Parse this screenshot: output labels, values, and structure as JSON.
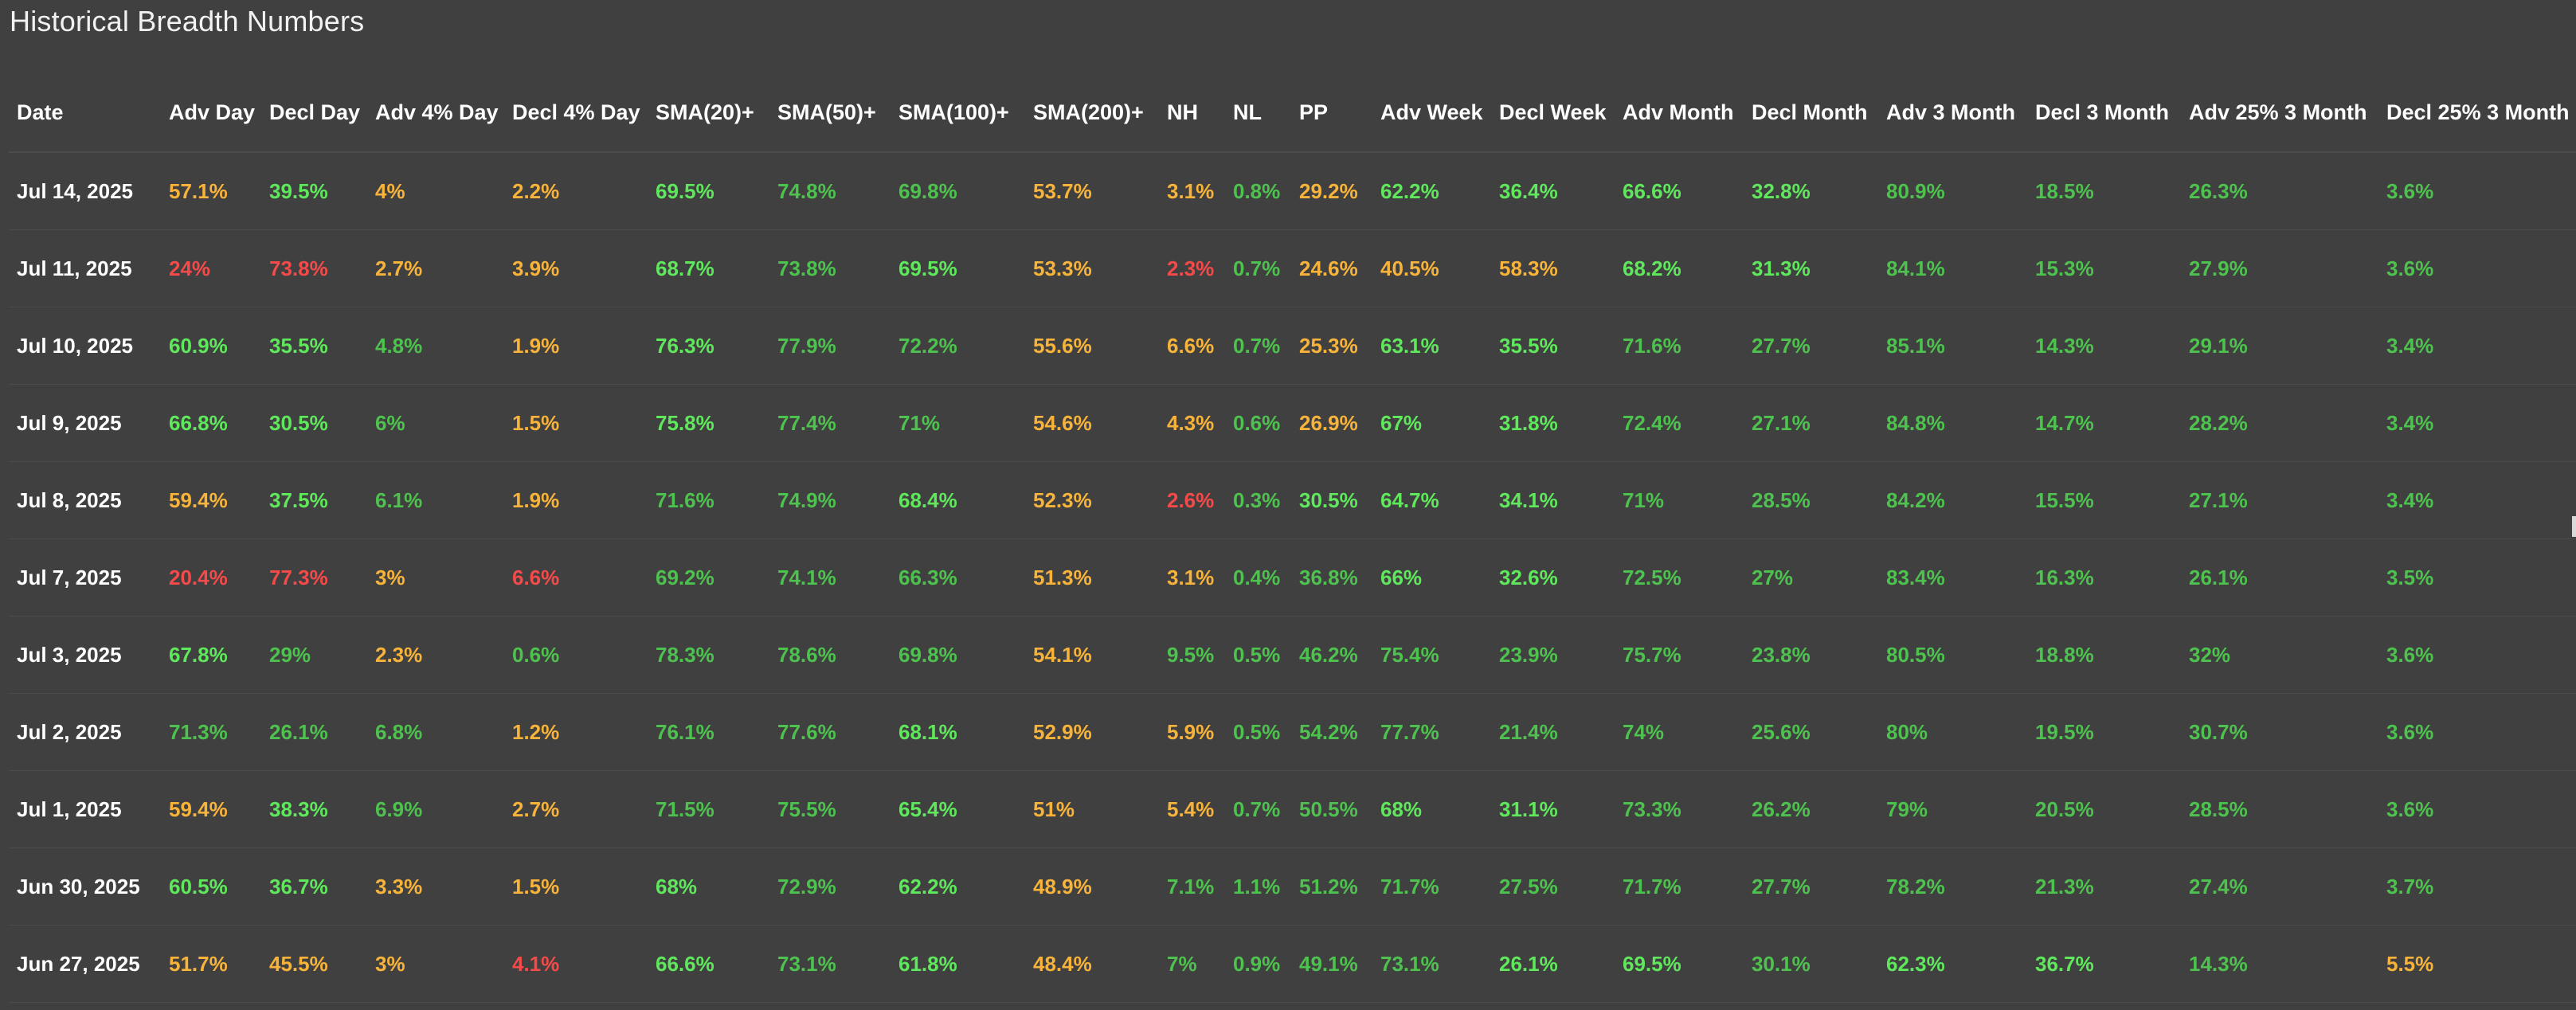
{
  "page": {
    "title": "Historical Breadth Numbers"
  },
  "colors": {
    "background": "#404040",
    "yellow": "#f7b33a",
    "red": "#f44a4a",
    "green": "#5fe85c",
    "green_muted": "#4ec24e"
  },
  "table": {
    "columns": [
      "Date",
      "Adv Day",
      "Decl Day",
      "Adv 4% Day",
      "Decl 4% Day",
      "SMA(20)+",
      "SMA(50)+",
      "SMA(100)+",
      "SMA(200)+",
      "NH",
      "NL",
      "PP",
      "Adv Week",
      "Decl Week",
      "Adv Month",
      "Decl Month",
      "Adv 3 Month",
      "Decl 3 Month",
      "Adv 25% 3 Month",
      "Decl 25% 3 Month"
    ],
    "rows": [
      {
        "cells": [
          "Jul 14, 2025",
          "57.1%",
          "39.5%",
          "4%",
          "2.2%",
          "69.5%",
          "74.8%",
          "69.8%",
          "53.7%",
          "3.1%",
          "0.8%",
          "29.2%",
          "62.2%",
          "36.4%",
          "66.6%",
          "32.8%",
          "80.9%",
          "18.5%",
          "26.3%",
          "3.6%"
        ],
        "colors": [
          "w",
          "y",
          "g",
          "y",
          "y",
          "g",
          "gm",
          "gm",
          "y",
          "y",
          "gm",
          "y",
          "g",
          "g",
          "g",
          "g",
          "gm",
          "gm",
          "gm",
          "gm"
        ]
      },
      {
        "cells": [
          "Jul 11, 2025",
          "24%",
          "73.8%",
          "2.7%",
          "3.9%",
          "68.7%",
          "73.8%",
          "69.5%",
          "53.3%",
          "2.3%",
          "0.7%",
          "24.6%",
          "40.5%",
          "58.3%",
          "68.2%",
          "31.3%",
          "84.1%",
          "15.3%",
          "27.9%",
          "3.6%"
        ],
        "colors": [
          "w",
          "r",
          "r",
          "y",
          "y",
          "g",
          "gm",
          "g",
          "y",
          "r",
          "gm",
          "y",
          "y",
          "y",
          "g",
          "g",
          "gm",
          "gm",
          "gm",
          "gm"
        ]
      },
      {
        "cells": [
          "Jul 10, 2025",
          "60.9%",
          "35.5%",
          "4.8%",
          "1.9%",
          "76.3%",
          "77.9%",
          "72.2%",
          "55.6%",
          "6.6%",
          "0.7%",
          "25.3%",
          "63.1%",
          "35.5%",
          "71.6%",
          "27.7%",
          "85.1%",
          "14.3%",
          "29.1%",
          "3.4%"
        ],
        "colors": [
          "w",
          "g",
          "g",
          "gm",
          "y",
          "g",
          "gm",
          "gm",
          "y",
          "y",
          "gm",
          "y",
          "g",
          "g",
          "gm",
          "gm",
          "gm",
          "gm",
          "gm",
          "gm"
        ]
      },
      {
        "cells": [
          "Jul 9, 2025",
          "66.8%",
          "30.5%",
          "6%",
          "1.5%",
          "75.8%",
          "77.4%",
          "71%",
          "54.6%",
          "4.3%",
          "0.6%",
          "26.9%",
          "67%",
          "31.8%",
          "72.4%",
          "27.1%",
          "84.8%",
          "14.7%",
          "28.2%",
          "3.4%"
        ],
        "colors": [
          "w",
          "g",
          "g",
          "gm",
          "y",
          "g",
          "gm",
          "gm",
          "y",
          "y",
          "gm",
          "y",
          "g",
          "g",
          "gm",
          "gm",
          "gm",
          "gm",
          "gm",
          "gm"
        ]
      },
      {
        "cells": [
          "Jul 8, 2025",
          "59.4%",
          "37.5%",
          "6.1%",
          "1.9%",
          "71.6%",
          "74.9%",
          "68.4%",
          "52.3%",
          "2.6%",
          "0.3%",
          "30.5%",
          "64.7%",
          "34.1%",
          "71%",
          "28.5%",
          "84.2%",
          "15.5%",
          "27.1%",
          "3.4%"
        ],
        "colors": [
          "w",
          "y",
          "g",
          "gm",
          "y",
          "gm",
          "gm",
          "g",
          "y",
          "r",
          "gm",
          "g",
          "g",
          "g",
          "gm",
          "gm",
          "gm",
          "gm",
          "gm",
          "gm"
        ]
      },
      {
        "cells": [
          "Jul 7, 2025",
          "20.4%",
          "77.3%",
          "3%",
          "6.6%",
          "69.2%",
          "74.1%",
          "66.3%",
          "51.3%",
          "3.1%",
          "0.4%",
          "36.8%",
          "66%",
          "32.6%",
          "72.5%",
          "27%",
          "83.4%",
          "16.3%",
          "26.1%",
          "3.5%"
        ],
        "colors": [
          "w",
          "r",
          "r",
          "y",
          "r",
          "gm",
          "gm",
          "gm",
          "y",
          "y",
          "gm",
          "gm",
          "g",
          "g",
          "gm",
          "gm",
          "gm",
          "gm",
          "gm",
          "gm"
        ]
      },
      {
        "cells": [
          "Jul 3, 2025",
          "67.8%",
          "29%",
          "2.3%",
          "0.6%",
          "78.3%",
          "78.6%",
          "69.8%",
          "54.1%",
          "9.5%",
          "0.5%",
          "46.2%",
          "75.4%",
          "23.9%",
          "75.7%",
          "23.8%",
          "80.5%",
          "18.8%",
          "32%",
          "3.6%"
        ],
        "colors": [
          "w",
          "g",
          "gm",
          "y",
          "gm",
          "gm",
          "gm",
          "gm",
          "y",
          "gm",
          "gm",
          "gm",
          "gm",
          "gm",
          "gm",
          "gm",
          "gm",
          "gm",
          "gm",
          "gm"
        ]
      },
      {
        "cells": [
          "Jul 2, 2025",
          "71.3%",
          "26.1%",
          "6.8%",
          "1.2%",
          "76.1%",
          "77.6%",
          "68.1%",
          "52.9%",
          "5.9%",
          "0.5%",
          "54.2%",
          "77.7%",
          "21.4%",
          "74%",
          "25.6%",
          "80%",
          "19.5%",
          "30.7%",
          "3.6%"
        ],
        "colors": [
          "w",
          "gm",
          "gm",
          "gm",
          "y",
          "gm",
          "gm",
          "g",
          "y",
          "y",
          "gm",
          "gm",
          "gm",
          "gm",
          "gm",
          "gm",
          "gm",
          "gm",
          "gm",
          "gm"
        ]
      },
      {
        "cells": [
          "Jul 1, 2025",
          "59.4%",
          "38.3%",
          "6.9%",
          "2.7%",
          "71.5%",
          "75.5%",
          "65.4%",
          "51%",
          "5.4%",
          "0.7%",
          "50.5%",
          "68%",
          "31.1%",
          "73.3%",
          "26.2%",
          "79%",
          "20.5%",
          "28.5%",
          "3.6%"
        ],
        "colors": [
          "w",
          "y",
          "g",
          "gm",
          "y",
          "gm",
          "gm",
          "g",
          "y",
          "y",
          "gm",
          "gm",
          "g",
          "g",
          "gm",
          "gm",
          "gm",
          "gm",
          "gm",
          "gm"
        ]
      },
      {
        "cells": [
          "Jun 30, 2025",
          "60.5%",
          "36.7%",
          "3.3%",
          "1.5%",
          "68%",
          "72.9%",
          "62.2%",
          "48.9%",
          "7.1%",
          "1.1%",
          "51.2%",
          "71.7%",
          "27.5%",
          "71.7%",
          "27.7%",
          "78.2%",
          "21.3%",
          "27.4%",
          "3.7%"
        ],
        "colors": [
          "w",
          "g",
          "g",
          "y",
          "y",
          "g",
          "gm",
          "g",
          "y",
          "gm",
          "gm",
          "gm",
          "gm",
          "gm",
          "gm",
          "gm",
          "gm",
          "gm",
          "gm",
          "gm"
        ]
      },
      {
        "cells": [
          "Jun 27, 2025",
          "51.7%",
          "45.5%",
          "3%",
          "4.1%",
          "66.6%",
          "73.1%",
          "61.8%",
          "48.4%",
          "7%",
          "0.9%",
          "49.1%",
          "73.1%",
          "26.1%",
          "69.5%",
          "30.1%",
          "62.3%",
          "36.7%",
          "14.3%",
          "5.5%"
        ],
        "colors": [
          "w",
          "y",
          "y",
          "y",
          "r",
          "g",
          "gm",
          "g",
          "y",
          "gm",
          "gm",
          "gm",
          "gm",
          "g",
          "g",
          "gm",
          "g",
          "g",
          "gm",
          "y"
        ]
      }
    ]
  }
}
